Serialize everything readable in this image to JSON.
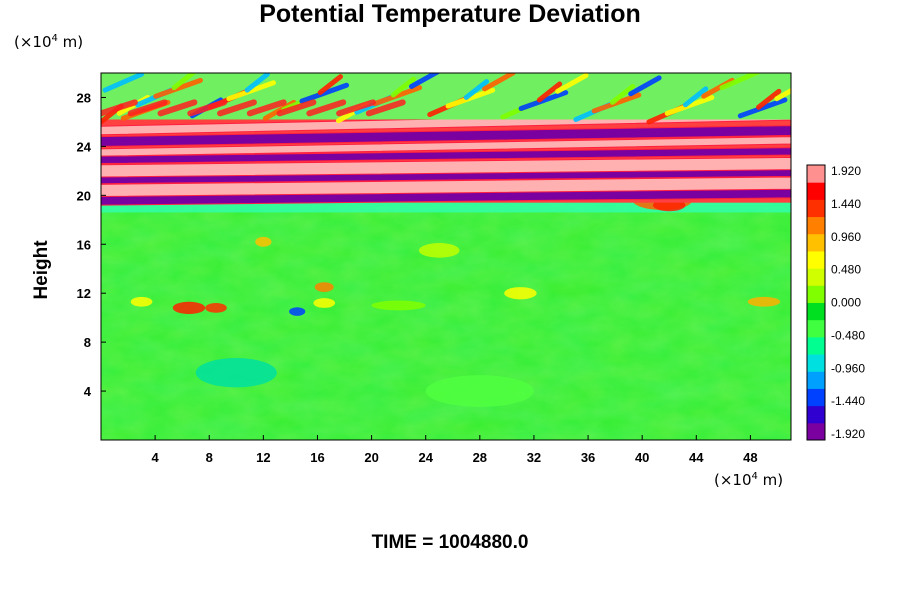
{
  "chart_data": {
    "type": "heatmap",
    "title": "Potential Temperature Deviation",
    "ylabel": "Height",
    "xlabel": "",
    "x_unit": "(×10⁴ m)",
    "y_unit": "(×10⁴ m)",
    "unit_prefix": "(×10",
    "unit_exp": "4",
    "unit_suffix": " m)",
    "xlim": [
      0,
      51
    ],
    "ylim": [
      0,
      30
    ],
    "x_ticks": [
      4,
      8,
      12,
      16,
      20,
      24,
      28,
      32,
      36,
      40,
      44,
      48
    ],
    "y_ticks": [
      4,
      8,
      12,
      16,
      20,
      24,
      28
    ],
    "colorbar": {
      "ticks": [
        1.92,
        1.44,
        0.96,
        0.48,
        0.0,
        -0.48,
        -0.96,
        -1.44,
        -1.92
      ],
      "tick_labels": [
        "1.920",
        "1.440",
        "0.960",
        "0.480",
        "0.000",
        "-0.480",
        "-0.960",
        "-1.440",
        "-1.920"
      ],
      "range": [
        -1.92,
        1.92
      ],
      "colors": [
        "#7a00a0",
        "#3000d0",
        "#0040ff",
        "#00a0ff",
        "#00e0e0",
        "#00ff90",
        "#40ff40",
        "#00e020",
        "#80ff00",
        "#d0ff00",
        "#ffff00",
        "#ffc000",
        "#ff8000",
        "#ff3000",
        "#ff0000",
        "#ff9090"
      ]
    },
    "regions": [
      {
        "y_range": [
          0,
          19.5
        ],
        "value": 0.0,
        "description_color": "green"
      },
      {
        "y_range": [
          19.5,
          25
        ],
        "value": "alternating",
        "bands": [
          1.92,
          -1.92
        ]
      },
      {
        "y_range": [
          25,
          30
        ],
        "value": "wavy",
        "bands": [
          1.5,
          -1.0
        ]
      }
    ],
    "grid": false,
    "time_label": "TIME = ",
    "time_value": "1004880.0"
  }
}
